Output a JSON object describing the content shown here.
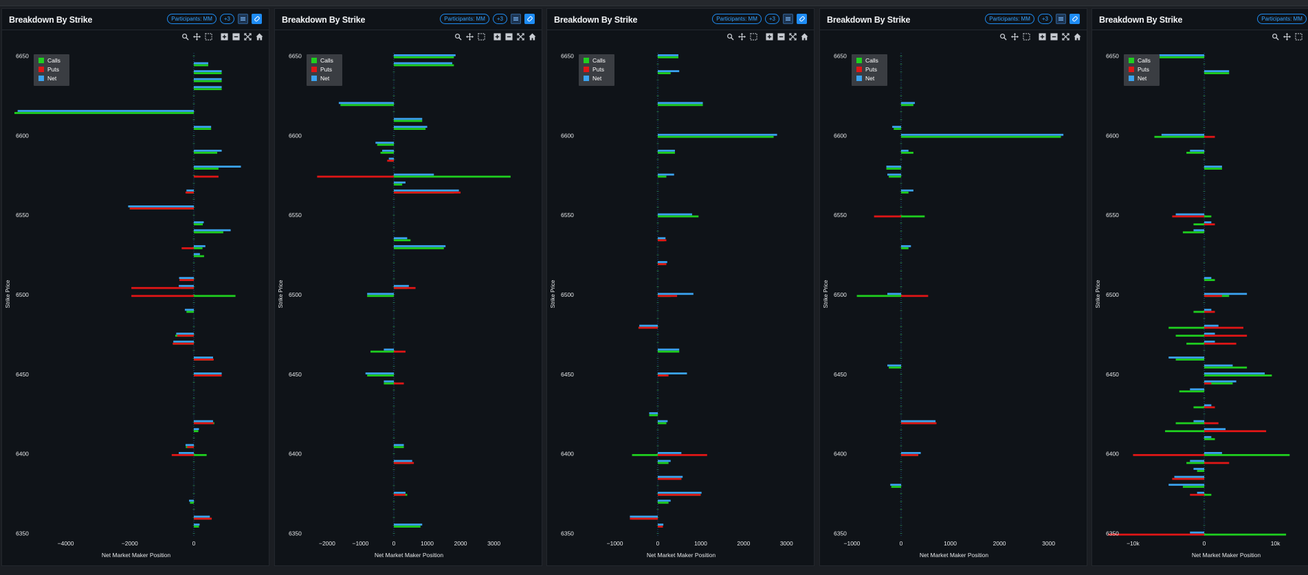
{
  "panel_common": {
    "title": "Breakdown By Strike",
    "participants_chip": "Participants: MM",
    "more_chip": "+3",
    "toolbar_icons": [
      "zoom-icon",
      "pan-icon",
      "box-select-icon",
      "zoom-in-icon",
      "zoom-out-icon",
      "autoscale-icon",
      "reset-home-icon"
    ]
  },
  "colors": {
    "calls": "#1fcf1f",
    "puts": "#e01616",
    "net": "#3ba3f0",
    "panel_bg": "#0f1318",
    "accent": "#1e8cf5"
  },
  "chart_data": [
    {
      "type": "bar",
      "orientation": "horizontal",
      "title": "Breakdown By Strike",
      "xlabel": "Net Market Maker Position",
      "ylabel": "Strike Price",
      "xlim": [
        -5600,
        1800
      ],
      "ylim": [
        6348,
        6652
      ],
      "xticks": [
        -4000,
        -2000,
        0
      ],
      "xtick_labels": [
        "−4000",
        "−2000",
        "0"
      ],
      "yticks": [
        6350,
        6400,
        6450,
        6500,
        6550,
        6600,
        6650
      ],
      "legend": {
        "position": "top-left",
        "entries": [
          "Calls",
          "Puts",
          "Net"
        ]
      },
      "strikes": [
        6645,
        6640,
        6635,
        6630,
        6615,
        6605,
        6590,
        6580,
        6575,
        6565,
        6555,
        6545,
        6540,
        6530,
        6525,
        6510,
        6505,
        6500,
        6490,
        6475,
        6470,
        6460,
        6450,
        6420,
        6415,
        6405,
        6400,
        6370,
        6360,
        6355
      ],
      "series": [
        {
          "name": "Calls",
          "values": [
            450,
            870,
            870,
            870,
            -5600,
            540,
            730,
            770,
            140,
            -210,
            -2000,
            280,
            920,
            270,
            320,
            -420,
            -400,
            1300,
            -230,
            -580,
            -640,
            600,
            850,
            640,
            140,
            -250,
            400,
            -120,
            550,
            160
          ]
        },
        {
          "name": "Puts",
          "values": [
            0,
            0,
            0,
            0,
            0,
            0,
            0,
            0,
            770,
            -260,
            -2000,
            0,
            0,
            -380,
            0,
            -450,
            -1950,
            -1950,
            0,
            -520,
            -660,
            620,
            870,
            620,
            0,
            -210,
            -690,
            0,
            560,
            0
          ]
        },
        {
          "name": "Net",
          "values": [
            450,
            870,
            870,
            870,
            -5500,
            540,
            870,
            1470,
            0,
            -230,
            -2050,
            310,
            1150,
            360,
            190,
            -460,
            -470,
            0,
            -280,
            -550,
            -640,
            600,
            870,
            600,
            160,
            -260,
            -470,
            -150,
            500,
            180
          ]
        }
      ]
    },
    {
      "type": "bar",
      "orientation": "horizontal",
      "title": "Breakdown By Strike",
      "xlabel": "Net Market Maker Position",
      "ylabel": "Strike Price",
      "xlim": [
        -2400,
        4100
      ],
      "ylim": [
        6348,
        6652
      ],
      "xticks": [
        -2000,
        -1000,
        0,
        1000,
        2000,
        3000
      ],
      "xtick_labels": [
        "−2000",
        "−1000",
        "0",
        "1000",
        "2000",
        "3000"
      ],
      "yticks": [
        6350,
        6400,
        6450,
        6500,
        6550,
        6600,
        6650
      ],
      "legend": {
        "position": "top-left",
        "entries": [
          "Calls",
          "Puts",
          "Net"
        ]
      },
      "strikes": [
        6650,
        6645,
        6620,
        6610,
        6605,
        6595,
        6590,
        6585,
        6575,
        6570,
        6565,
        6535,
        6530,
        6505,
        6500,
        6465,
        6450,
        6445,
        6440,
        6405,
        6395,
        6390,
        6375,
        6355
      ],
      "series": [
        {
          "name": "Calls",
          "values": [
            1800,
            1800,
            -1600,
            850,
            950,
            -500,
            -400,
            -100,
            3500,
            250,
            1800,
            500,
            1500,
            400,
            -800,
            -700,
            -800,
            -300,
            0,
            300,
            500,
            0,
            400,
            800
          ]
        },
        {
          "name": "Puts",
          "values": [
            0,
            0,
            0,
            0,
            0,
            0,
            0,
            -200,
            -2300,
            0,
            2000,
            0,
            0,
            650,
            0,
            350,
            0,
            300,
            0,
            0,
            600,
            0,
            350,
            0
          ]
        },
        {
          "name": "Net",
          "values": [
            1850,
            1750,
            -1650,
            850,
            1000,
            -550,
            -350,
            -150,
            1200,
            350,
            1950,
            400,
            1550,
            450,
            -800,
            -300,
            -850,
            -300,
            0,
            300,
            550,
            0,
            350,
            850
          ]
        }
      ]
    },
    {
      "type": "bar",
      "orientation": "horizontal",
      "title": "Breakdown By Strike",
      "xlabel": "Net Market Maker Position",
      "ylabel": "Strike Price",
      "xlim": [
        -1580,
        3380
      ],
      "ylim": [
        6348,
        6652
      ],
      "xticks": [
        -1000,
        0,
        1000,
        2000,
        3000
      ],
      "xtick_labels": [
        "−1000",
        "0",
        "1000",
        "2000",
        "3000"
      ],
      "yticks": [
        6350,
        6400,
        6450,
        6500,
        6550,
        6600,
        6650
      ],
      "legend": {
        "position": "top-left",
        "entries": [
          "Calls",
          "Puts",
          "Net"
        ]
      },
      "strikes": [
        6650,
        6640,
        6620,
        6600,
        6590,
        6575,
        6550,
        6535,
        6520,
        6500,
        6480,
        6465,
        6450,
        6425,
        6420,
        6400,
        6395,
        6385,
        6375,
        6370,
        6360,
        6355
      ],
      "series": [
        {
          "name": "Calls",
          "values": [
            480,
            300,
            1050,
            2700,
            400,
            200,
            950,
            150,
            150,
            300,
            -450,
            500,
            200,
            -200,
            200,
            -600,
            250,
            550,
            1000,
            250,
            -600,
            100
          ]
        },
        {
          "name": "Puts",
          "values": [
            0,
            0,
            0,
            0,
            0,
            0,
            0,
            200,
            200,
            450,
            -450,
            0,
            250,
            0,
            0,
            1150,
            0,
            550,
            1000,
            0,
            -650,
            120
          ]
        },
        {
          "name": "Net",
          "values": [
            480,
            500,
            1050,
            2780,
            400,
            380,
            800,
            180,
            220,
            830,
            -430,
            500,
            680,
            -200,
            230,
            550,
            300,
            580,
            1020,
            300,
            -650,
            130
          ]
        }
      ]
    },
    {
      "type": "bar",
      "orientation": "horizontal",
      "title": "Breakdown By Strike",
      "xlabel": "Net Market Maker Position",
      "ylabel": "Strike Price",
      "xlim": [
        -1150,
        3550
      ],
      "ylim": [
        6348,
        6652
      ],
      "xticks": [
        -1000,
        0,
        1000,
        2000,
        3000
      ],
      "xtick_labels": [
        "−1000",
        "0",
        "1000",
        "2000",
        "3000"
      ],
      "yticks": [
        6350,
        6400,
        6450,
        6500,
        6550,
        6600,
        6650
      ],
      "legend": {
        "position": "top-left",
        "entries": [
          "Calls",
          "Puts",
          "Net"
        ]
      },
      "strikes": [
        6620,
        6605,
        6600,
        6590,
        6580,
        6575,
        6565,
        6550,
        6530,
        6500,
        6455,
        6420,
        6400,
        6380
      ],
      "series": [
        {
          "name": "Calls",
          "values": [
            250,
            -150,
            3250,
            250,
            -300,
            -250,
            150,
            480,
            150,
            -900,
            -250,
            700,
            350,
            -200
          ]
        },
        {
          "name": "Puts",
          "values": [
            0,
            0,
            0,
            0,
            0,
            0,
            0,
            -550,
            0,
            550,
            0,
            720,
            350,
            0
          ]
        },
        {
          "name": "Net",
          "values": [
            280,
            -180,
            3300,
            150,
            -300,
            -280,
            250,
            0,
            200,
            -280,
            -280,
            700,
            400,
            -220
          ]
        }
      ]
    },
    {
      "type": "bar",
      "orientation": "horizontal",
      "title": "Breakdown By Strike",
      "xlabel": "Net Market Maker Position",
      "ylabel": "Strike Price",
      "xlim": [
        -14000,
        14000
      ],
      "ylim": [
        6348,
        6652
      ],
      "xticks": [
        -10000,
        0,
        10000
      ],
      "xtick_labels": [
        "−10k",
        "0",
        "10k"
      ],
      "yticks": [
        6350,
        6400,
        6450,
        6500,
        6550,
        6600,
        6650
      ],
      "legend": {
        "position": "top-left",
        "entries": [
          "Calls",
          "Puts",
          "Net"
        ]
      },
      "strikes": [
        6650,
        6640,
        6600,
        6590,
        6580,
        6550,
        6545,
        6540,
        6510,
        6500,
        6490,
        6480,
        6475,
        6470,
        6460,
        6455,
        6450,
        6445,
        6440,
        6430,
        6420,
        6415,
        6410,
        6400,
        6395,
        6390,
        6385,
        6380,
        6375,
        6350
      ],
      "series": [
        {
          "name": "Calls",
          "values": [
            -8000,
            3500,
            -7000,
            -2500,
            2500,
            1000,
            -1500,
            -3000,
            1500,
            3500,
            -1500,
            -5000,
            -4000,
            -2500,
            -4000,
            6000,
            9500,
            4000,
            -3500,
            -1500,
            -4000,
            -5500,
            1500,
            12000,
            -2500,
            -1000,
            -4000,
            -3000,
            1000,
            11500
          ]
        },
        {
          "name": "Puts",
          "values": [
            0,
            0,
            1500,
            0,
            0,
            -4500,
            1500,
            0,
            0,
            2500,
            1500,
            5500,
            6000,
            4500,
            0,
            0,
            0,
            1000,
            0,
            1500,
            2000,
            8700,
            0,
            -10000,
            3500,
            0,
            -4500,
            0,
            -2000,
            -13500
          ]
        },
        {
          "name": "Net",
          "values": [
            -9500,
            3500,
            -6000,
            -2000,
            2500,
            -4000,
            1000,
            -1500,
            1000,
            6000,
            1000,
            2000,
            1500,
            1500,
            -5000,
            4000,
            8500,
            4500,
            -2000,
            1000,
            -1500,
            3000,
            1000,
            2500,
            -2000,
            -1500,
            -4200,
            -5000,
            -1000,
            -2000
          ]
        }
      ]
    }
  ]
}
